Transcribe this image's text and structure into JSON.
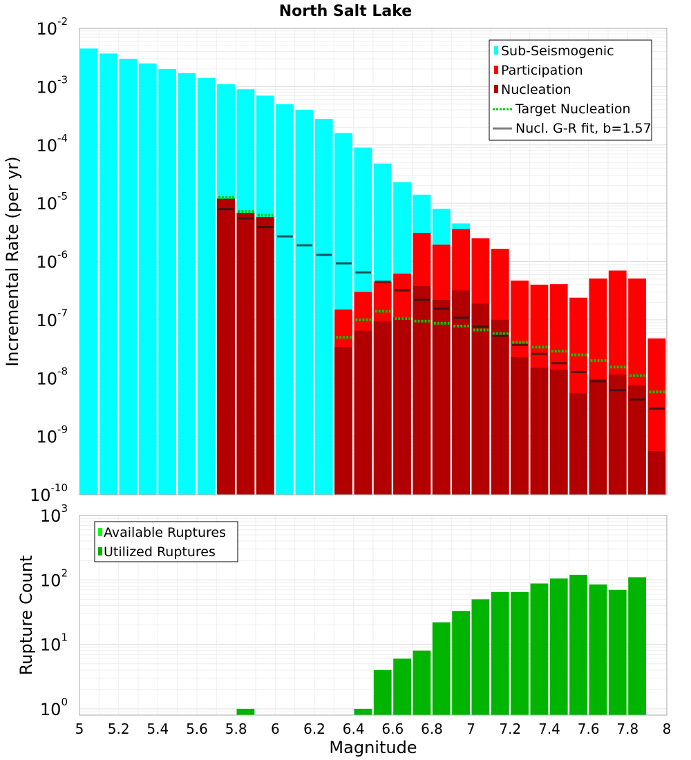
{
  "chart_data": [
    {
      "type": "bar",
      "title": "North Salt Lake",
      "ylabel": "Incremental Rate (per yr)",
      "yscale": "log",
      "ylim": [
        1e-10,
        0.01
      ],
      "xlim": [
        5,
        8
      ],
      "y_tick_labels": [
        {
          "base": "10",
          "exp": "-2"
        },
        {
          "base": "10",
          "exp": "-3"
        },
        {
          "base": "10",
          "exp": "-4"
        },
        {
          "base": "10",
          "exp": "-5"
        },
        {
          "base": "10",
          "exp": "-6"
        },
        {
          "base": "10",
          "exp": "-7"
        },
        {
          "base": "10",
          "exp": "-8"
        },
        {
          "base": "10",
          "exp": "-9"
        },
        {
          "base": "10",
          "exp": "-10"
        }
      ],
      "grid": true,
      "legend_position": "top-right",
      "legend": [
        {
          "label": "Sub-Seismogenic",
          "color": "#00ffff",
          "style": "box"
        },
        {
          "label": "Participation",
          "color": "#ff0000",
          "style": "box"
        },
        {
          "label": "Nucleation",
          "color": "#b20000",
          "style": "box"
        },
        {
          "label": "Target Nucleation",
          "color": "#00c800",
          "style": "dotted-line"
        },
        {
          "label": "Nucl. G-R fit, b=1.57",
          "color": "#808080",
          "style": "line"
        }
      ],
      "series": [
        {
          "name": "Sub-Seismogenic",
          "color": "#00ffff",
          "x": [
            5.0,
            5.1,
            5.2,
            5.3,
            5.4,
            5.5,
            5.6,
            5.7,
            5.8,
            5.9,
            6.0,
            6.1,
            6.2,
            6.3,
            6.4,
            6.5,
            6.6,
            6.7,
            6.8,
            6.9
          ],
          "values": [
            0.0045,
            0.0037,
            0.003,
            0.0025,
            0.002,
            0.0017,
            0.0014,
            0.0011,
            0.0009,
            0.0007,
            0.0005,
            0.0004,
            0.00028,
            0.00016,
            9e-05,
            4.8e-05,
            2.3e-05,
            1.4e-05,
            8e-06,
            4.5e-06
          ]
        },
        {
          "name": "Participation",
          "color": "#ff0000",
          "x": [
            5.7,
            5.8,
            5.9,
            6.3,
            6.4,
            6.5,
            6.6,
            6.7,
            6.8,
            6.9,
            7.0,
            7.1,
            7.2,
            7.3,
            7.4,
            7.5,
            7.6,
            7.7,
            7.8,
            7.9
          ],
          "values": [
            1.2e-05,
            6.8e-06,
            5.8e-06,
            1.5e-07,
            3e-07,
            4.5e-07,
            6.2e-07,
            3.1e-06,
            1.95e-06,
            3.6e-06,
            2.5e-06,
            1.65e-06,
            4.7e-07,
            4e-07,
            4.1e-07,
            2.4e-07,
            5.1e-07,
            7e-07,
            5.1e-07,
            4.8e-08
          ]
        },
        {
          "name": "Nucleation",
          "color": "#b20000",
          "x": [
            5.7,
            5.8,
            5.9,
            6.3,
            6.4,
            6.5,
            6.6,
            6.7,
            6.8,
            6.9,
            7.0,
            7.1,
            7.2,
            7.3,
            7.4,
            7.5,
            7.6,
            7.7,
            7.8,
            7.9
          ],
          "values": [
            1.2e-05,
            6.8e-06,
            5.8e-06,
            3.4e-08,
            6.5e-08,
            9.5e-08,
            1.1e-07,
            3.8e-07,
            2.2e-07,
            3.2e-07,
            1.9e-07,
            1e-07,
            2.3e-08,
            1.5e-08,
            1.4e-08,
            5.5e-09,
            9.5e-09,
            1.15e-08,
            7.5e-09,
            5.6e-10
          ]
        },
        {
          "name": "Target Nucleation",
          "color": "#00c800",
          "x": [
            5.75,
            5.85,
            5.95,
            6.35,
            6.45,
            6.55,
            6.65,
            6.75,
            6.85,
            6.95,
            7.05,
            7.15,
            7.25,
            7.35,
            7.45,
            7.55,
            7.65,
            7.75,
            7.85,
            7.95
          ],
          "values": [
            1.25e-05,
            7.2e-06,
            6.2e-06,
            5e-08,
            1e-07,
            1.4e-07,
            1.05e-07,
            9.5e-08,
            8.7e-08,
            7.8e-08,
            6.7e-08,
            5.8e-08,
            4.1e-08,
            3.4e-08,
            2.9e-08,
            2.5e-08,
            2e-08,
            1.55e-08,
            1.1e-08,
            5.8e-09
          ]
        },
        {
          "name": "Nucl. G-R fit, b=1.57",
          "color": "#1a1a1a",
          "x": [
            5.75,
            5.85,
            5.95,
            6.05,
            6.15,
            6.25,
            6.35,
            6.45,
            6.55,
            6.65,
            6.75,
            6.85,
            6.95,
            7.05,
            7.15,
            7.25,
            7.35,
            7.45,
            7.55,
            7.65,
            7.75,
            7.85,
            7.95
          ],
          "values": [
            7.9e-06,
            5.5e-06,
            3.9e-06,
            2.7e-06,
            1.9e-06,
            1.3e-06,
            9.3e-07,
            6.5e-07,
            4.5e-07,
            3.2e-07,
            2.2e-07,
            1.55e-07,
            1.08e-07,
            7.6e-08,
            5.3e-08,
            3.7e-08,
            2.6e-08,
            1.8e-08,
            1.27e-08,
            8.8e-09,
            6.2e-09,
            4.3e-09,
            3e-09
          ]
        }
      ]
    },
    {
      "type": "bar",
      "xlabel": "Magnitude",
      "ylabel": "Rupture Count",
      "yscale": "log",
      "ylim": [
        0.8,
        1000
      ],
      "xlim": [
        5,
        8
      ],
      "x_ticks": [
        "5",
        "5.2",
        "5.4",
        "5.6",
        "5.8",
        "6",
        "6.2",
        "6.4",
        "6.6",
        "6.8",
        "7",
        "7.2",
        "7.4",
        "7.6",
        "7.8",
        "8"
      ],
      "y_tick_labels": [
        {
          "base": "10",
          "exp": "3"
        },
        {
          "base": "10",
          "exp": "2"
        },
        {
          "base": "10",
          "exp": "1"
        },
        {
          "base": "10",
          "exp": "0"
        }
      ],
      "grid": true,
      "legend_position": "top-left",
      "legend": [
        {
          "label": "Available Ruptures",
          "color": "#00ff00",
          "style": "box"
        },
        {
          "label": "Utilized Ruptures",
          "color": "#00b400",
          "style": "box"
        }
      ],
      "series": [
        {
          "name": "Utilized Ruptures",
          "color": "#00b400",
          "x": [
            5.8,
            6.4,
            6.5,
            6.6,
            6.7,
            6.8,
            6.9,
            7.0,
            7.1,
            7.2,
            7.3,
            7.4,
            7.5,
            7.6,
            7.7,
            7.8
          ],
          "values": [
            1,
            1,
            4,
            6,
            8,
            22,
            33,
            50,
            65,
            65,
            88,
            105,
            120,
            85,
            70,
            110
          ]
        }
      ]
    }
  ]
}
